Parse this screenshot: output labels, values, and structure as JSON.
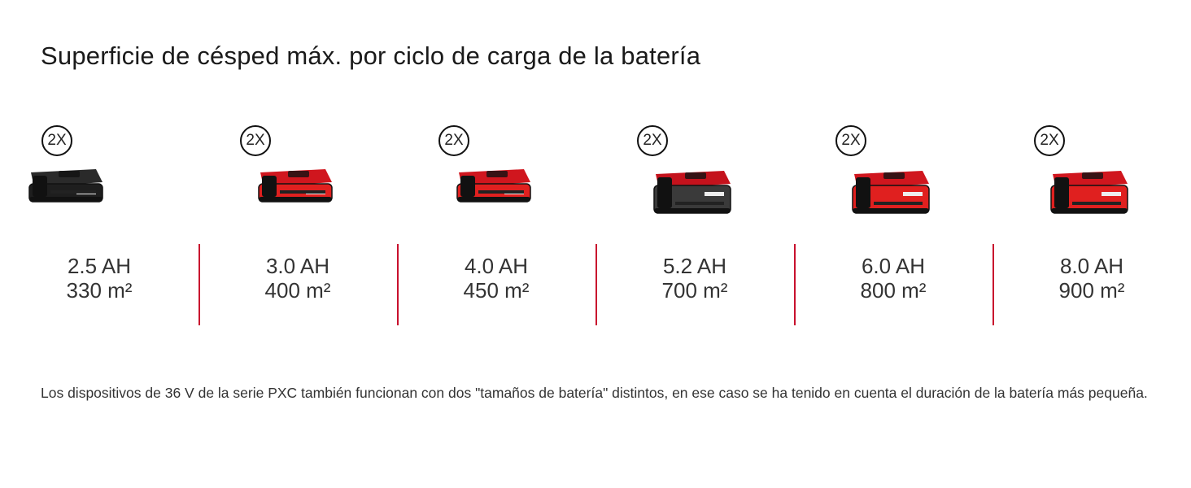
{
  "title": "Superficie de césped máx. por ciclo de carga de la batería",
  "accent_color": "#c8102e",
  "batteries": [
    {
      "quantity": "2X",
      "capacity": "2.5 AH",
      "area": "330 m²",
      "top_color": "#2a2a2a",
      "body_color": "#1e1e1e",
      "size": "small"
    },
    {
      "quantity": "2X",
      "capacity": "3.0 AH",
      "area": "400 m²",
      "top_color": "#d0161e",
      "body_color": "#e0201f",
      "size": "small"
    },
    {
      "quantity": "2X",
      "capacity": "4.0 AH",
      "area": "450 m²",
      "top_color": "#d0161e",
      "body_color": "#e0201f",
      "size": "small"
    },
    {
      "quantity": "2X",
      "capacity": "5.2 AH",
      "area": "700 m²",
      "top_color": "#c4121c",
      "body_color": "#3a3a3a",
      "size": "large"
    },
    {
      "quantity": "2X",
      "capacity": "6.0 AH",
      "area": "800 m²",
      "top_color": "#d0161e",
      "body_color": "#e0201f",
      "size": "large"
    },
    {
      "quantity": "2X",
      "capacity": "8.0 AH",
      "area": "900 m²",
      "top_color": "#d0161e",
      "body_color": "#e0201f",
      "size": "large"
    }
  ],
  "footnote": "Los dispositivos de 36 V de la serie PXC también funcionan con dos \"tamaños de batería\" distintos, en ese caso se ha tenido en cuenta el duración de la batería más pequeña."
}
